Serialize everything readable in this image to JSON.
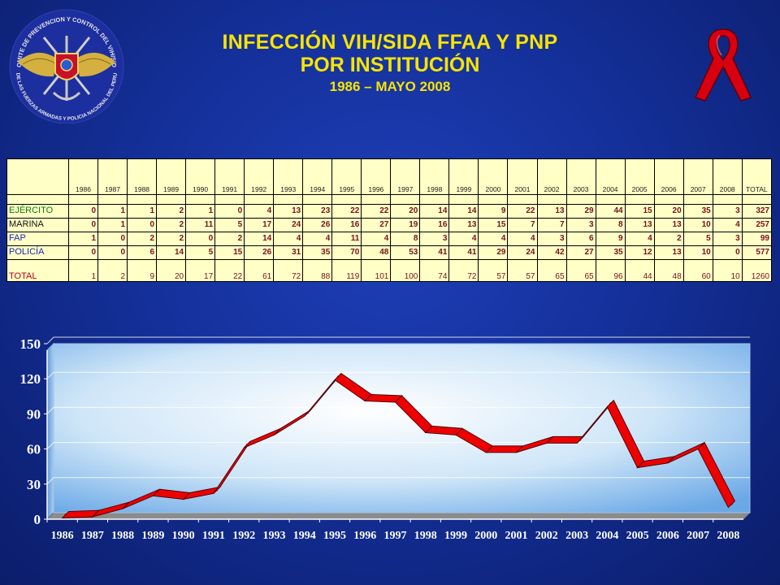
{
  "header": {
    "title_line1": "INFECCIÓN VIH/SIDA FFAA Y PNP",
    "title_line2": "POR INSTITUCIÓN",
    "title_line3": "1986 – MAYO 2008",
    "emblem_top_text": "COMITE DE PREVENCION Y CONTROL DEL VIH/SIDA",
    "emblem_bottom_text": "DE LAS FUERZAS ARMADAS Y POLICIA NACIONAL DEL PERU"
  },
  "colors": {
    "background": "#14309a",
    "title": "#f7e400",
    "table_bg": "#ffffc6",
    "ribbon": "#e00010",
    "line": "#ee0000",
    "plot_bg": "#cfe6f8"
  },
  "table": {
    "years": [
      "1986",
      "1987",
      "1988",
      "1989",
      "1990",
      "1991",
      "1992",
      "1993",
      "1994",
      "1995",
      "1996",
      "1997",
      "1998",
      "1999",
      "2000",
      "2001",
      "2002",
      "2003",
      "2004",
      "2005",
      "2006",
      "2007",
      "2008"
    ],
    "total_header": "TOTAL",
    "rows": [
      {
        "label": "EJÉRCITO",
        "values": [
          "0",
          "1",
          "1",
          "2",
          "1",
          "0",
          "4",
          "13",
          "23",
          "22",
          "22",
          "20",
          "14",
          "14",
          "9",
          "22",
          "13",
          "29",
          "44",
          "15",
          "20",
          "35",
          "3"
        ],
        "total": "327"
      },
      {
        "label": "MARINA",
        "values": [
          "0",
          "1",
          "0",
          "2",
          "11",
          "5",
          "17",
          "24",
          "26",
          "16",
          "27",
          "19",
          "16",
          "13",
          "15",
          "7",
          "7",
          "3",
          "8",
          "13",
          "13",
          "10",
          "4"
        ],
        "total": "257"
      },
      {
        "label": "FAP",
        "values": [
          "1",
          "0",
          "2",
          "2",
          "0",
          "2",
          "14",
          "4",
          "4",
          "11",
          "4",
          "8",
          "3",
          "4",
          "4",
          "4",
          "3",
          "6",
          "9",
          "4",
          "2",
          "5",
          "3"
        ],
        "total": "99"
      },
      {
        "label": "POLICÍA",
        "values": [
          "0",
          "0",
          "6",
          "14",
          "5",
          "15",
          "26",
          "31",
          "35",
          "70",
          "48",
          "53",
          "41",
          "41",
          "29",
          "24",
          "42",
          "27",
          "35",
          "12",
          "13",
          "10",
          "0"
        ],
        "total": "577"
      }
    ],
    "total_row": {
      "label": "TOTAL",
      "values": [
        "1",
        "2",
        "9",
        "20",
        "17",
        "22",
        "61",
        "72",
        "88",
        "119",
        "101",
        "100",
        "74",
        "72",
        "57",
        "57",
        "65",
        "65",
        "96",
        "44",
        "48",
        "60",
        "10"
      ],
      "total": "1260"
    }
  },
  "chart_data": {
    "type": "line",
    "categories": [
      "1986",
      "1987",
      "1988",
      "1989",
      "1990",
      "1991",
      "1992",
      "1993",
      "1994",
      "1995",
      "1996",
      "1997",
      "1998",
      "1999",
      "2000",
      "2001",
      "2002",
      "2003",
      "2004",
      "2005",
      "2006",
      "2007",
      "2008"
    ],
    "series": [
      {
        "values": [
          1,
          2,
          9,
          20,
          17,
          22,
          61,
          72,
          88,
          119,
          101,
          100,
          74,
          72,
          57,
          57,
          65,
          65,
          96,
          44,
          48,
          60,
          10
        ]
      }
    ],
    "ylim": [
      0,
      150
    ],
    "yticks": [
      0,
      30,
      60,
      90,
      120,
      150
    ],
    "grid": true,
    "legend": "none",
    "style": "3d"
  }
}
